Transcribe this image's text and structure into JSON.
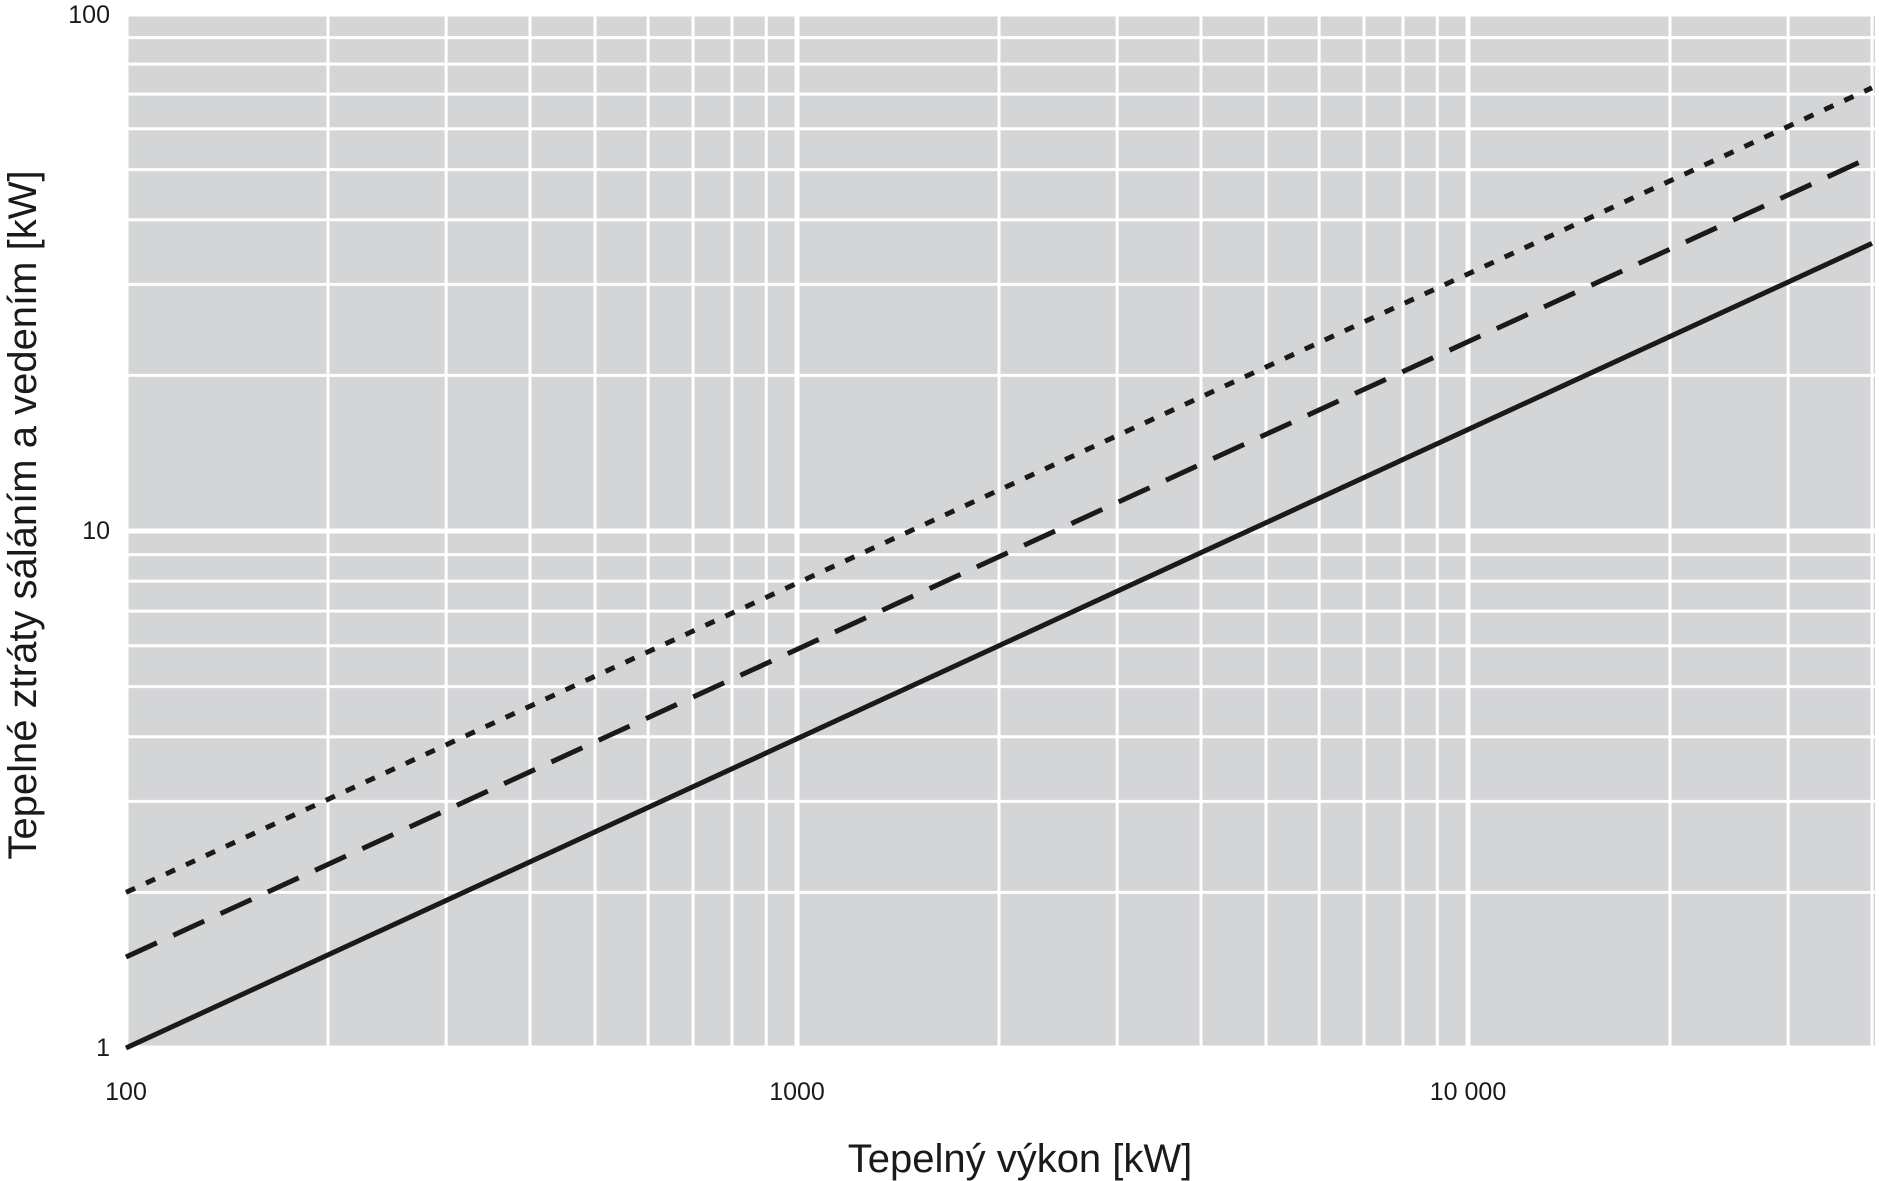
{
  "chart_data": {
    "type": "line",
    "xlabel": "Tepelný výkon [kW]",
    "ylabel": "Tepelné ztráty sáláním a vedením  [kW]",
    "x_scale": "log",
    "y_scale": "log",
    "xlim": [
      100,
      40000
    ],
    "ylim": [
      1,
      100
    ],
    "x_ticks": [
      {
        "value": 100,
        "label": "100"
      },
      {
        "value": 1000,
        "label": "1000"
      },
      {
        "value": 10000,
        "label": "10 000"
      }
    ],
    "y_ticks": [
      {
        "value": 1,
        "label": "1"
      },
      {
        "value": 10,
        "label": "10"
      },
      {
        "value": 100,
        "label": "100"
      }
    ],
    "grid": true,
    "colors": {
      "plot_background": "#d4d5d7",
      "grid": "#ffffff",
      "series": "#1a1a1a",
      "text": "#1a1a1a"
    },
    "series": [
      {
        "style": "dotted",
        "x": [
          100,
          40000
        ],
        "y": [
          2.0,
          72
        ]
      },
      {
        "style": "dashed",
        "x": [
          100,
          40000
        ],
        "y": [
          1.5,
          53
        ]
      },
      {
        "style": "solid",
        "x": [
          100,
          40000
        ],
        "y": [
          1.0,
          36
        ]
      }
    ]
  }
}
